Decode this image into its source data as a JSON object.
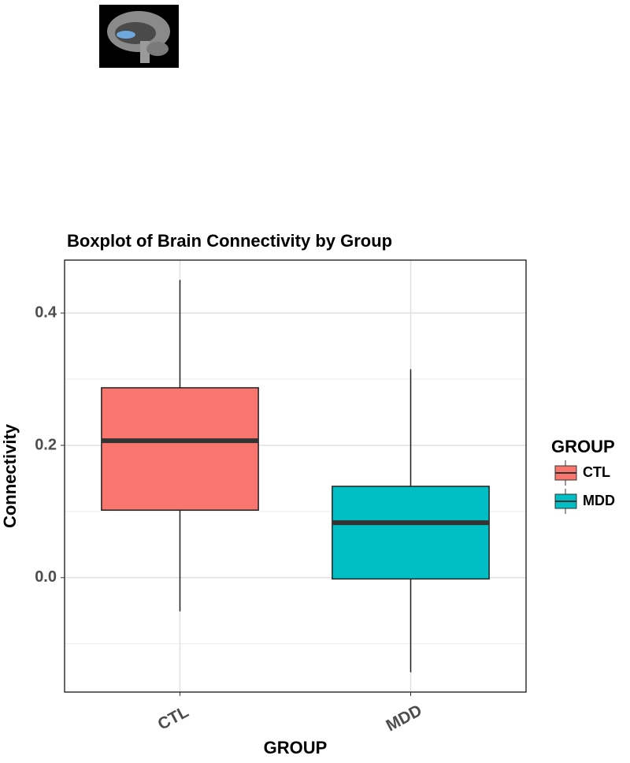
{
  "chart_data": {
    "type": "box",
    "title": "Boxplot of Brain Connectivity by Group",
    "x_label": "GROUP",
    "y_label": "Connectivity",
    "categories": [
      "CTL",
      "MDD"
    ],
    "series": [
      {
        "name": "CTL",
        "color": "#f8766d",
        "min": -0.051,
        "q1": 0.102,
        "median": 0.207,
        "q3": 0.287,
        "max": 0.45
      },
      {
        "name": "MDD",
        "color": "#00bfc4",
        "min": -0.143,
        "q1": -0.002,
        "median": 0.083,
        "q3": 0.138,
        "max": 0.315
      }
    ],
    "legend_title": "GROUP",
    "ylim": [
      -0.173,
      0.48
    ],
    "yticks": [
      {
        "value": 0,
        "label": "0.0"
      },
      0.2,
      0.4
    ],
    "minor_yticks": [
      -0.1,
      0.1,
      0.3
    ],
    "grid": true
  }
}
